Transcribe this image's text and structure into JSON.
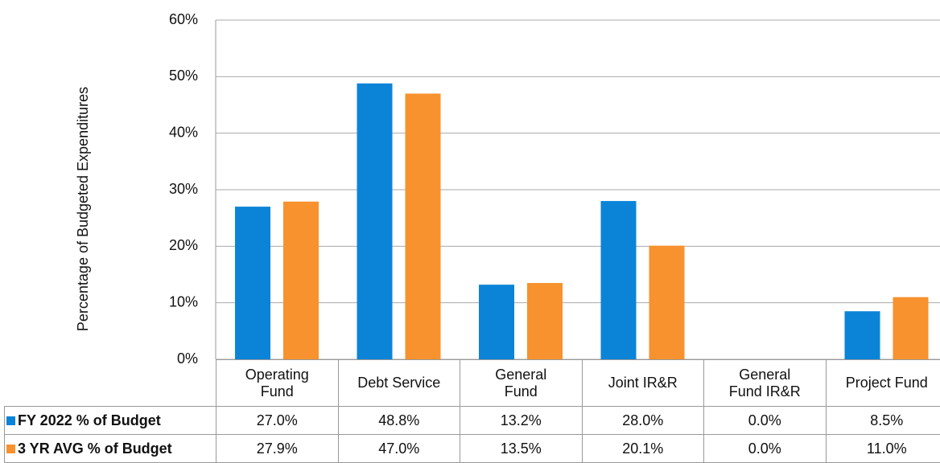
{
  "chart_data": {
    "type": "bar",
    "y_label": "Percentage of Budgeted Expenditures",
    "categories": [
      "Operating\nFund",
      "Debt Service",
      "General\nFund",
      "Joint IR&R",
      "General\nFund IR&R",
      "Project Fund"
    ],
    "series": [
      {
        "name": "FY 2022 % of Budget",
        "color": "#0B84D8",
        "values": [
          27.0,
          48.8,
          13.2,
          28.0,
          0.0,
          8.5
        ],
        "value_labels": [
          "27.0%",
          "48.8%",
          "13.2%",
          "28.0%",
          "0.0%",
          "8.5%"
        ]
      },
      {
        "name": "3 YR AVG % of Budget",
        "color": "#F7922E",
        "values": [
          27.9,
          47.0,
          13.5,
          20.1,
          0.0,
          11.0
        ],
        "value_labels": [
          "27.9%",
          "47.0%",
          "13.5%",
          "20.1%",
          "0.0%",
          "11.0%"
        ]
      }
    ],
    "ylim": [
      0,
      60
    ],
    "yticks": [
      {
        "value": 0,
        "label": "0%"
      },
      {
        "value": 10,
        "label": "10%"
      },
      {
        "value": 20,
        "label": "20%"
      },
      {
        "value": 30,
        "label": "30%"
      },
      {
        "value": 40,
        "label": "40%"
      },
      {
        "value": 50,
        "label": "50%"
      },
      {
        "value": 60,
        "label": "60%"
      }
    ],
    "grid": true
  }
}
